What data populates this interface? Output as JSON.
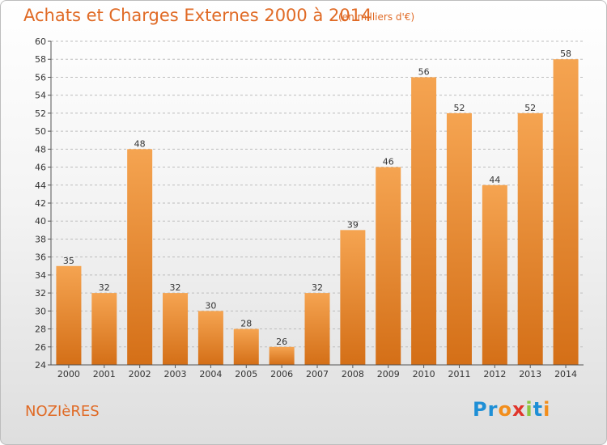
{
  "header": {
    "title": "Achats et Charges Externes 2000 à 2014",
    "subtitle": "(en milliers d'€)"
  },
  "footer": {
    "commune": "NOZIèRES",
    "logo": {
      "letters": [
        "P",
        "r",
        "o",
        "x",
        "i",
        "t",
        "i"
      ],
      "colors": [
        "#1e8fd6",
        "#1e8fd6",
        "#f28e1c",
        "#e0352b",
        "#8cc63f",
        "#1e8fd6",
        "#f28e1c"
      ]
    }
  },
  "colors": {
    "bar_top": "#f5a451",
    "bar_bottom": "#d46f17",
    "grid": "#bdbdbd",
    "axis": "#555555"
  },
  "chart_data": {
    "type": "bar",
    "categories": [
      "2000",
      "2001",
      "2002",
      "2003",
      "2004",
      "2005",
      "2006",
      "2007",
      "2008",
      "2009",
      "2010",
      "2011",
      "2012",
      "2013",
      "2014"
    ],
    "values": [
      35,
      32,
      48,
      32,
      30,
      28,
      26,
      32,
      39,
      46,
      56,
      52,
      44,
      52,
      58
    ],
    "ylim": [
      24,
      60
    ],
    "yticks": [
      24,
      26,
      28,
      30,
      32,
      34,
      36,
      38,
      40,
      42,
      44,
      46,
      48,
      50,
      52,
      54,
      56,
      58,
      60
    ],
    "grid": true,
    "xlabel": "",
    "ylabel": ""
  }
}
